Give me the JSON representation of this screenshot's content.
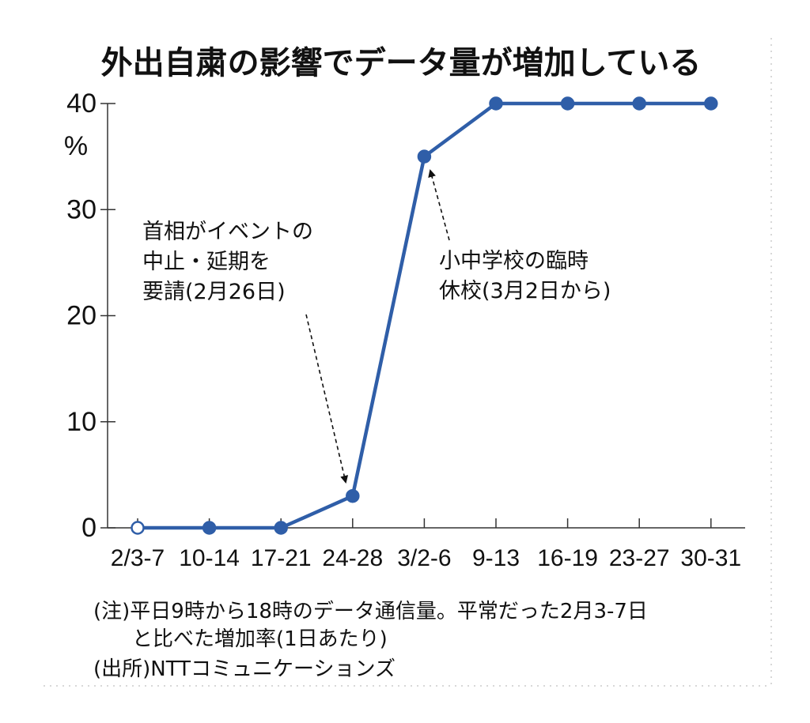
{
  "chart_data": {
    "type": "line",
    "title": "外出自粛の影響でデータ量が増加している",
    "ylabel": "%",
    "ylim": [
      0,
      40
    ],
    "yticks": [
      "0",
      "10",
      "20",
      "30",
      "40"
    ],
    "categories": [
      "2/3-7",
      "10-14",
      "17-21",
      "24-28",
      "3/2-6",
      "9-13",
      "16-19",
      "23-27",
      "30-31"
    ],
    "series": [
      {
        "values": [
          0,
          0,
          0,
          3,
          35,
          40,
          40,
          40,
          40
        ],
        "color": "#2f5ea8"
      }
    ],
    "baseline_point": "2/3-7",
    "annotations": [
      {
        "lines": [
          "首相がイベントの",
          "中止・延期を",
          "要請(2月26日)"
        ],
        "target": "24-28"
      },
      {
        "lines": [
          "小中学校の臨時",
          "休校(3月2日から)"
        ],
        "target": "3/2-6"
      }
    ],
    "notes": [
      "(注)平日9時から18時のデータ通信量。平常だった2月3-7日",
      "と比べた増加率(1日あたり)",
      "(出所)NTTコミュニケーションズ"
    ],
    "grid": false
  }
}
